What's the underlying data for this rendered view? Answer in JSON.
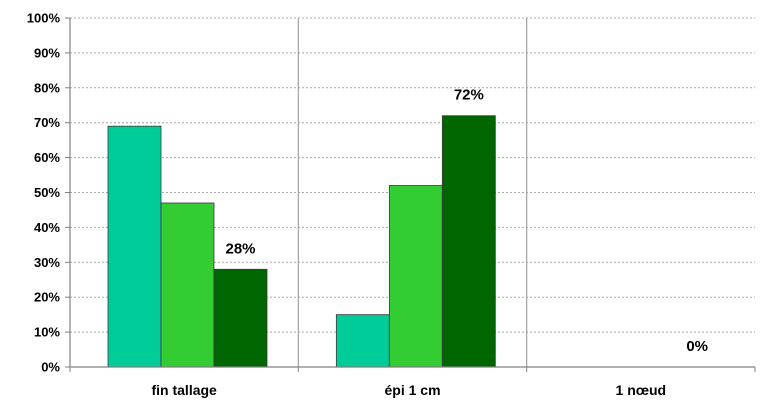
{
  "chart_data": {
    "type": "bar",
    "categories": [
      "fin tallage",
      "épi 1 cm",
      "1 nœud"
    ],
    "series": [
      {
        "values": [
          69,
          15,
          0
        ],
        "color": "#00cc99"
      },
      {
        "values": [
          47,
          52,
          0
        ],
        "color": "#33cc33"
      },
      {
        "values": [
          28,
          72,
          0
        ],
        "color": "#006600"
      }
    ],
    "ylim": [
      0,
      100
    ],
    "yticks": [
      "0%",
      "10%",
      "20%",
      "30%",
      "40%",
      "50%",
      "60%",
      "70%",
      "80%",
      "90%",
      "100%"
    ],
    "data_labels": [
      {
        "category_index": 0,
        "series_index": 2,
        "text": "28%"
      },
      {
        "category_index": 1,
        "series_index": 2,
        "text": "72%"
      },
      {
        "category_index": 2,
        "series_index": 2,
        "text": "0%"
      }
    ],
    "grid": true,
    "category_separators": true,
    "legend": false
  }
}
